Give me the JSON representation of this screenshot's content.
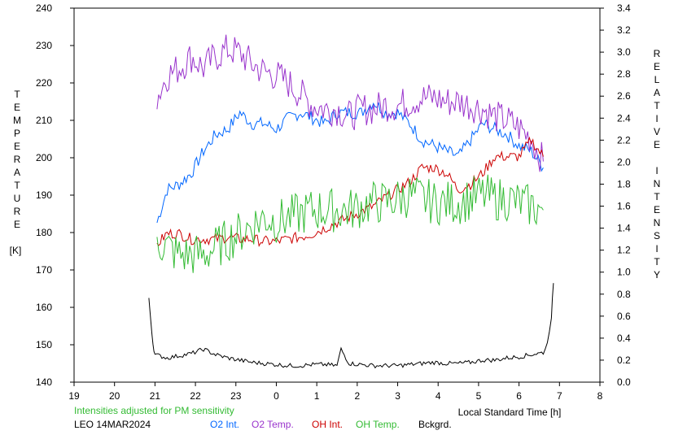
{
  "chart_data": {
    "type": "line",
    "title": "",
    "xlabel": "Local Standard Time [h]",
    "ylabel_left": "TEMPERATURE [K]",
    "ylabel_left_letters": [
      "T",
      "E",
      "M",
      "P",
      "E",
      "R",
      "A",
      "T",
      "U",
      "R",
      "E"
    ],
    "ylabel_left_unit": "[K]",
    "ylabel_right": "RELATIVE INTENSITY",
    "ylabel_right_word1": [
      "R",
      "E",
      "L",
      "A",
      "T",
      "I",
      "V",
      "E"
    ],
    "ylabel_right_word2": [
      "I",
      "N",
      "T",
      "E",
      "N",
      "S",
      "I",
      "T",
      "Y"
    ],
    "xlim": [
      19,
      32
    ],
    "x_ticks": [
      19,
      20,
      21,
      22,
      23,
      24,
      25,
      26,
      27,
      28,
      29,
      30,
      31,
      32
    ],
    "x_tick_labels": [
      "19",
      "20",
      "21",
      "22",
      "23",
      "0",
      "1",
      "2",
      "3",
      "4",
      "5",
      "6",
      "7",
      "8"
    ],
    "ylim_left": [
      140,
      240
    ],
    "y_left_ticks": [
      140,
      150,
      160,
      170,
      180,
      190,
      200,
      210,
      220,
      230,
      240
    ],
    "y_left_tick_labels": [
      "140",
      "150",
      "160",
      "170",
      "180",
      "190",
      "200",
      "210",
      "220",
      "230",
      "240"
    ],
    "ylim_right": [
      0.0,
      3.4
    ],
    "y_right_ticks": [
      0.0,
      0.2,
      0.4,
      0.6,
      0.8,
      1.0,
      1.2,
      1.4,
      1.6,
      1.8,
      2.0,
      2.2,
      2.4,
      2.6,
      2.8,
      3.0,
      3.2,
      3.4
    ],
    "y_right_tick_labels": [
      "0.0",
      "0.2",
      "0.4",
      "0.6",
      "0.8",
      "1.0",
      "1.2",
      "1.4",
      "1.6",
      "1.8",
      "2.0",
      "2.2",
      "2.4",
      "2.6",
      "2.8",
      "3.0",
      "3.2",
      "3.4"
    ],
    "grid": false,
    "series": [
      {
        "name": "O2 Int.",
        "color": "#0066ff",
        "axis": "right",
        "x": [
          21.05,
          21.3,
          21.6,
          21.9,
          22.2,
          22.5,
          22.8,
          23.1,
          23.4,
          23.7,
          24.0,
          24.3,
          24.6,
          24.9,
          25.2,
          25.5,
          25.8,
          26.1,
          26.4,
          26.7,
          27.0,
          27.3,
          27.6,
          27.9,
          28.2,
          28.5,
          28.8,
          29.1,
          29.4,
          29.7,
          30.0,
          30.3,
          30.6
        ],
        "y": [
          1.45,
          1.75,
          1.8,
          1.9,
          2.1,
          2.25,
          2.3,
          2.45,
          2.35,
          2.35,
          2.3,
          2.4,
          2.45,
          2.4,
          2.35,
          2.45,
          2.45,
          2.45,
          2.55,
          2.45,
          2.45,
          2.35,
          2.2,
          2.15,
          2.1,
          2.05,
          2.2,
          2.35,
          2.3,
          2.25,
          2.15,
          2.1,
          1.95
        ]
      },
      {
        "name": "O2 Temp.",
        "color": "#9933cc",
        "axis": "left",
        "x": [
          21.05,
          21.3,
          21.6,
          21.9,
          22.2,
          22.5,
          22.8,
          23.1,
          23.4,
          23.7,
          24.0,
          24.3,
          24.6,
          24.9,
          25.2,
          25.5,
          25.8,
          26.1,
          26.4,
          26.7,
          27.0,
          27.3,
          27.6,
          27.9,
          28.2,
          28.5,
          28.8,
          29.1,
          29.4,
          29.7,
          30.0,
          30.3,
          30.6
        ],
        "y": [
          216,
          222,
          224,
          227,
          224,
          227,
          229,
          228,
          225,
          223,
          222,
          220,
          217,
          214,
          213,
          213,
          211,
          213,
          213,
          214,
          214,
          215,
          216,
          216,
          215,
          215,
          214,
          213,
          211,
          210,
          208,
          205,
          199
        ]
      },
      {
        "name": "OH Int.",
        "color": "#cc0000",
        "axis": "right",
        "x": [
          21.05,
          21.3,
          21.6,
          21.9,
          22.2,
          22.5,
          22.8,
          23.1,
          23.4,
          23.7,
          24.0,
          24.3,
          24.6,
          24.9,
          25.2,
          25.5,
          25.8,
          26.1,
          26.4,
          26.7,
          27.0,
          27.3,
          27.6,
          27.9,
          28.2,
          28.5,
          28.8,
          29.1,
          29.4,
          29.7,
          30.0,
          30.3,
          30.6
        ],
        "y": [
          1.25,
          1.35,
          1.35,
          1.3,
          1.3,
          1.3,
          1.32,
          1.3,
          1.3,
          1.28,
          1.28,
          1.3,
          1.32,
          1.35,
          1.4,
          1.45,
          1.5,
          1.55,
          1.6,
          1.68,
          1.75,
          1.82,
          1.95,
          1.95,
          1.9,
          1.75,
          1.8,
          1.9,
          2.05,
          2.05,
          2.05,
          2.2,
          2.05
        ]
      },
      {
        "name": "OH Temp.",
        "color": "#33bb33",
        "axis": "left",
        "x": [
          21.05,
          21.3,
          21.6,
          21.9,
          22.2,
          22.5,
          22.8,
          23.1,
          23.4,
          23.7,
          24.0,
          24.3,
          24.6,
          24.9,
          25.2,
          25.5,
          25.8,
          26.1,
          26.4,
          26.7,
          27.0,
          27.3,
          27.6,
          27.9,
          28.2,
          28.5,
          28.8,
          29.1,
          29.4,
          29.7,
          30.0,
          30.3,
          30.6
        ],
        "y": [
          178,
          176,
          174,
          174,
          174,
          176,
          178,
          180,
          182,
          184,
          183,
          184,
          185,
          186,
          186,
          186,
          186,
          187,
          188,
          188,
          189,
          190,
          189,
          188,
          188,
          188,
          189,
          190,
          189,
          189,
          188,
          187,
          186
        ]
      },
      {
        "name": "Bckgrd.",
        "color": "#000000",
        "axis": "right",
        "x": [
          20.85,
          20.9,
          20.95,
          21.0,
          21.3,
          21.6,
          21.9,
          22.2,
          22.5,
          22.8,
          23.1,
          23.4,
          23.7,
          24.0,
          24.3,
          24.6,
          24.9,
          25.2,
          25.5,
          25.6,
          25.8,
          26.1,
          26.4,
          26.7,
          27.0,
          27.3,
          27.6,
          27.9,
          28.2,
          28.5,
          28.8,
          29.1,
          29.4,
          29.7,
          30.0,
          30.3,
          30.6,
          30.7,
          30.8,
          30.85
        ],
        "y": [
          0.75,
          0.55,
          0.35,
          0.25,
          0.22,
          0.24,
          0.26,
          0.3,
          0.25,
          0.22,
          0.2,
          0.18,
          0.17,
          0.16,
          0.15,
          0.15,
          0.16,
          0.16,
          0.15,
          0.3,
          0.17,
          0.16,
          0.15,
          0.15,
          0.15,
          0.16,
          0.17,
          0.18,
          0.17,
          0.17,
          0.18,
          0.2,
          0.2,
          0.22,
          0.23,
          0.25,
          0.27,
          0.35,
          0.6,
          0.9
        ]
      }
    ]
  },
  "footer": {
    "note": "Intensities adjusted for PM sensitivity",
    "station": "LEO 14MAR2024",
    "legend": [
      {
        "label": "O2 Int.",
        "color": "#0066ff"
      },
      {
        "label": "O2 Temp.",
        "color": "#9933cc"
      },
      {
        "label": "OH Int.",
        "color": "#cc0000"
      },
      {
        "label": "OH Temp.",
        "color": "#33bb33"
      },
      {
        "label": "Bckgrd.",
        "color": "#000000"
      }
    ]
  }
}
